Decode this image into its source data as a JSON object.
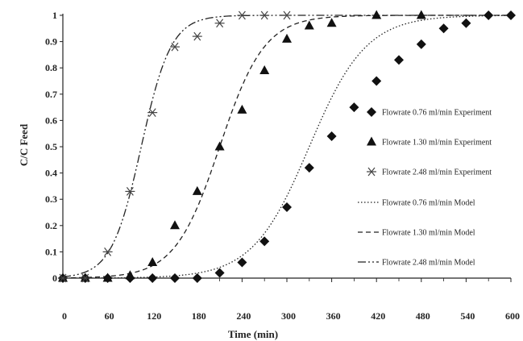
{
  "chart_data": {
    "type": "scatter",
    "xlabel": "Time (min)",
    "ylabel": "C/C Feed",
    "xlim": [
      0,
      600
    ],
    "ylim": [
      0,
      1
    ],
    "x_ticks": [
      "0",
      "60",
      "120",
      "180",
      "240",
      "300",
      "360",
      "420",
      "480",
      "540",
      "600"
    ],
    "y_ticks": [
      "0",
      "0.1",
      "0.2",
      "0.3",
      "0.4",
      "0.5",
      "0.6",
      "0.7",
      "0.8",
      "0.9",
      "1"
    ],
    "grid": false,
    "legend_position": "right",
    "series": [
      {
        "name": "Flowrate 0.76 ml/min Experiment",
        "kind": "experiment",
        "marker": "diamond",
        "color": "#111111",
        "points": [
          [
            0,
            0
          ],
          [
            30,
            0
          ],
          [
            60,
            0
          ],
          [
            90,
            0
          ],
          [
            120,
            0
          ],
          [
            150,
            0
          ],
          [
            180,
            0
          ],
          [
            210,
            0.02
          ],
          [
            240,
            0.06
          ],
          [
            270,
            0.14
          ],
          [
            300,
            0.27
          ],
          [
            330,
            0.42
          ],
          [
            360,
            0.54
          ],
          [
            390,
            0.65
          ],
          [
            420,
            0.75
          ],
          [
            450,
            0.83
          ],
          [
            480,
            0.89
          ],
          [
            510,
            0.95
          ],
          [
            540,
            0.97
          ],
          [
            570,
            1.0
          ],
          [
            600,
            1.0
          ]
        ]
      },
      {
        "name": "Flowrate 1.30 ml/min Experiment",
        "kind": "experiment",
        "marker": "triangle",
        "color": "#111111",
        "points": [
          [
            0,
            0
          ],
          [
            30,
            0
          ],
          [
            60,
            0
          ],
          [
            90,
            0.01
          ],
          [
            120,
            0.06
          ],
          [
            150,
            0.2
          ],
          [
            180,
            0.33
          ],
          [
            210,
            0.5
          ],
          [
            240,
            0.64
          ],
          [
            270,
            0.79
          ],
          [
            300,
            0.91
          ],
          [
            330,
            0.96
          ],
          [
            360,
            0.97
          ],
          [
            420,
            1.0
          ],
          [
            480,
            1.0
          ]
        ]
      },
      {
        "name": "Flowrate 2.48 ml/min Experiment",
        "kind": "experiment",
        "marker": "asterisk",
        "color": "#444444",
        "points": [
          [
            0,
            0
          ],
          [
            30,
            0
          ],
          [
            60,
            0.1
          ],
          [
            90,
            0.33
          ],
          [
            120,
            0.63
          ],
          [
            150,
            0.88
          ],
          [
            180,
            0.92
          ],
          [
            210,
            0.97
          ],
          [
            240,
            1.0
          ],
          [
            270,
            1.0
          ],
          [
            300,
            1.0
          ]
        ]
      },
      {
        "name": "Flowrate 0.76 ml/min Model",
        "kind": "model",
        "line_style": "dotted",
        "color": "#222222",
        "center": 330,
        "width": 38
      },
      {
        "name": "Flowrate 1.30 ml/min Model",
        "kind": "model",
        "line_style": "dashed",
        "color": "#222222",
        "center": 210,
        "width": 30
      },
      {
        "name": "Flowrate 2.48 ml/min Model",
        "kind": "model",
        "line_style": "dash-dot-dot",
        "color": "#222222",
        "center": 105,
        "width": 20
      }
    ]
  }
}
